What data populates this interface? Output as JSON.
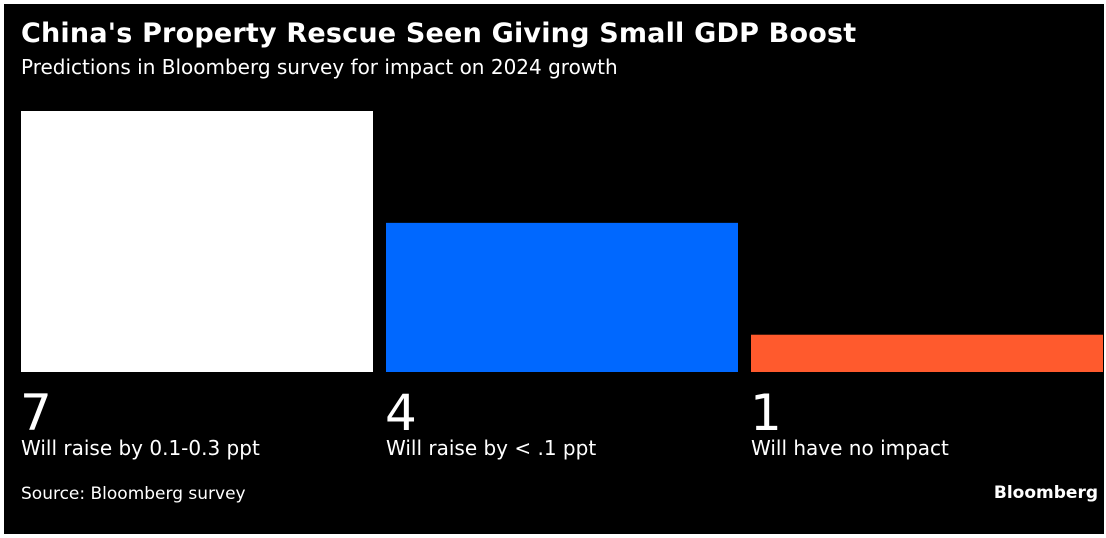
{
  "header": {
    "title": "China's Property Rescue Seen Giving Small GDP Boost",
    "subtitle": "Predictions in Bloomberg survey for impact on 2024 growth"
  },
  "footer": {
    "source": "Source: Bloomberg survey",
    "brand": "Bloomberg"
  },
  "chart_data": {
    "type": "bar",
    "categories": [
      "Will raise by 0.1-0.3 ppt",
      "Will raise by < .1 ppt",
      "Will have no impact"
    ],
    "values": [
      7,
      4,
      1
    ],
    "colors": [
      "#ffffff",
      "#0068ff",
      "#ff5a2d"
    ],
    "title": "China's Property Rescue Seen Giving Small GDP Boost",
    "subtitle": "Predictions in Bloomberg survey for impact on 2024 growth",
    "grid": false,
    "legend": "none"
  }
}
